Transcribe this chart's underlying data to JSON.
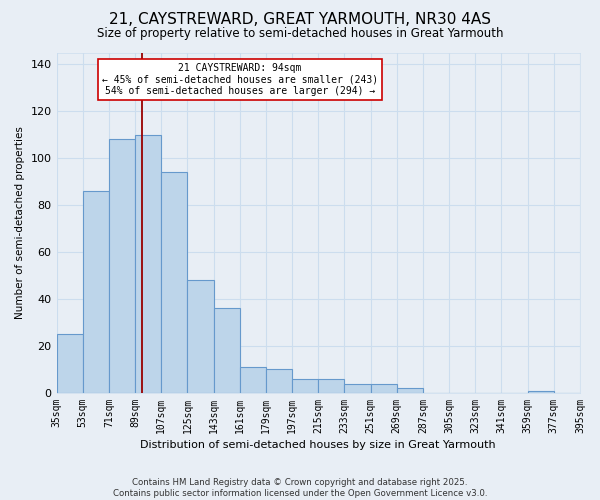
{
  "title": "21, CAYSTREWARD, GREAT YARMOUTH, NR30 4AS",
  "subtitle": "Size of property relative to semi-detached houses in Great Yarmouth",
  "xlabel": "Distribution of semi-detached houses by size in Great Yarmouth",
  "ylabel": "Number of semi-detached properties",
  "bar_values": [
    25,
    86,
    108,
    110,
    94,
    48,
    36,
    11,
    10,
    6,
    6,
    4,
    4,
    2,
    0,
    0,
    0,
    0,
    1,
    0
  ],
  "bin_labels": [
    "35sqm",
    "53sqm",
    "71sqm",
    "89sqm",
    "107sqm",
    "125sqm",
    "143sqm",
    "161sqm",
    "179sqm",
    "197sqm",
    "215sqm",
    "233sqm",
    "251sqm",
    "269sqm",
    "287sqm",
    "305sqm",
    "323sqm",
    "341sqm",
    "359sqm",
    "377sqm",
    "395sqm"
  ],
  "bin_edges": [
    35,
    53,
    71,
    89,
    107,
    125,
    143,
    161,
    179,
    197,
    215,
    233,
    251,
    269,
    287,
    305,
    323,
    341,
    359,
    377,
    395
  ],
  "bar_color": "#bdd5ea",
  "bar_edge_color": "#6699cc",
  "vline_x": 94,
  "vline_color": "#990000",
  "annotation_title": "21 CAYSTREWARD: 94sqm",
  "annotation_line1": "← 45% of semi-detached houses are smaller (243)",
  "annotation_line2": "54% of semi-detached houses are larger (294) →",
  "annotation_box_facecolor": "#ffffff",
  "annotation_box_edgecolor": "#cc0000",
  "ylim": [
    0,
    145
  ],
  "yticks": [
    0,
    20,
    40,
    60,
    80,
    100,
    120,
    140
  ],
  "grid_color": "#ccddee",
  "background_color": "#e8eef5",
  "plot_bg_color": "#e8eef5",
  "footer_line1": "Contains HM Land Registry data © Crown copyright and database right 2025.",
  "footer_line2": "Contains public sector information licensed under the Open Government Licence v3.0."
}
